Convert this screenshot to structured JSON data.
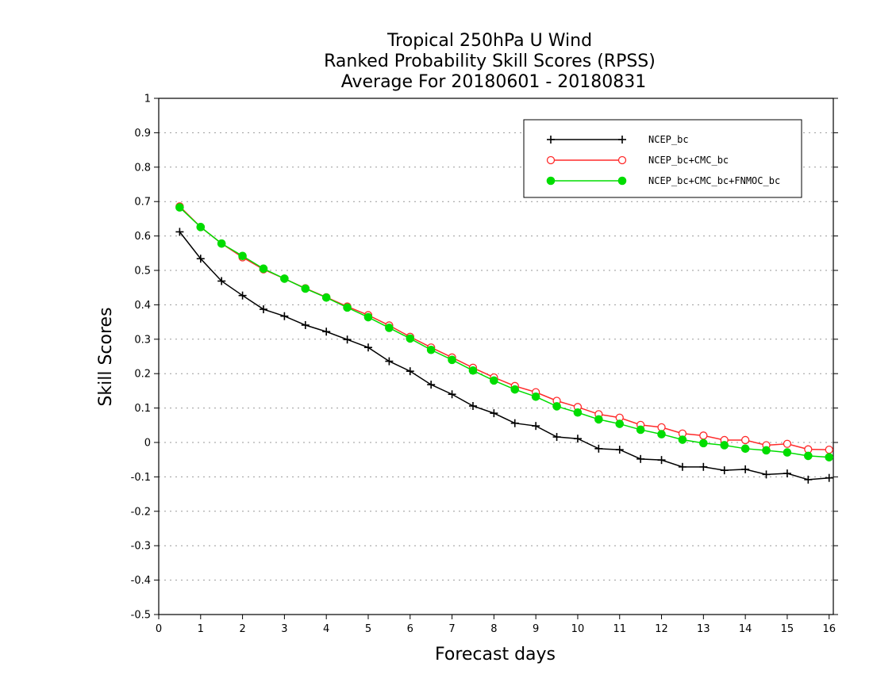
{
  "chart_data": {
    "type": "line",
    "title": [
      "Tropical 250hPa U Wind",
      "Ranked Probability Skill Scores (RPSS)",
      "Average For 20180601 - 20180831"
    ],
    "xlabel": "Forecast days",
    "ylabel": "Skill Scores",
    "xlim": [
      0,
      16.1
    ],
    "ylim": [
      -0.5,
      1
    ],
    "xticks": [
      0,
      1,
      2,
      3,
      4,
      5,
      6,
      7,
      8,
      9,
      10,
      11,
      12,
      13,
      14,
      15,
      16
    ],
    "yticks": [
      -0.5,
      -0.4,
      -0.3,
      -0.2,
      -0.1,
      0,
      0.1,
      0.2,
      0.3,
      0.4,
      0.5,
      0.6,
      0.7,
      0.8,
      0.9,
      1
    ],
    "grid": "horizontal dotted",
    "legend_position": "top-right",
    "x": [
      0.5,
      1,
      1.5,
      2,
      2.5,
      3,
      3.5,
      4,
      4.5,
      5,
      5.5,
      6,
      6.5,
      7,
      7.5,
      8,
      8.5,
      9,
      9.5,
      10,
      10.5,
      11,
      11.5,
      12,
      12.5,
      13,
      13.5,
      14,
      14.5,
      15,
      15.5,
      16
    ],
    "series": [
      {
        "name": "NCEP_bc",
        "color": "#000000",
        "marker": "plus",
        "values": [
          0.612,
          0.534,
          0.469,
          0.427,
          0.387,
          0.367,
          0.341,
          0.322,
          0.299,
          0.276,
          0.236,
          0.207,
          0.168,
          0.14,
          0.106,
          0.085,
          0.056,
          0.048,
          0.016,
          0.011,
          -0.018,
          -0.021,
          -0.048,
          -0.051,
          -0.071,
          -0.071,
          -0.081,
          -0.078,
          -0.093,
          -0.09,
          -0.108,
          -0.103
        ]
      },
      {
        "name": "NCEP_bc+CMC_bc",
        "color": "#ff2a2a",
        "marker": "open-circle",
        "values": [
          0.686,
          0.626,
          0.578,
          0.538,
          0.503,
          0.476,
          0.448,
          0.422,
          0.395,
          0.37,
          0.34,
          0.307,
          0.276,
          0.247,
          0.217,
          0.189,
          0.164,
          0.146,
          0.121,
          0.103,
          0.082,
          0.072,
          0.051,
          0.044,
          0.026,
          0.02,
          0.007,
          0.007,
          -0.008,
          -0.004,
          -0.02,
          -0.021
        ]
      },
      {
        "name": "NCEP_bc+CMC_bc+FNMOC_bc",
        "color": "#00dd00",
        "marker": "filled-circle",
        "values": [
          0.683,
          0.626,
          0.578,
          0.542,
          0.505,
          0.476,
          0.447,
          0.421,
          0.392,
          0.364,
          0.333,
          0.302,
          0.269,
          0.24,
          0.209,
          0.18,
          0.154,
          0.133,
          0.105,
          0.087,
          0.067,
          0.054,
          0.037,
          0.024,
          0.008,
          -0.002,
          -0.008,
          -0.018,
          -0.023,
          -0.029,
          -0.039,
          -0.043
        ]
      }
    ]
  }
}
